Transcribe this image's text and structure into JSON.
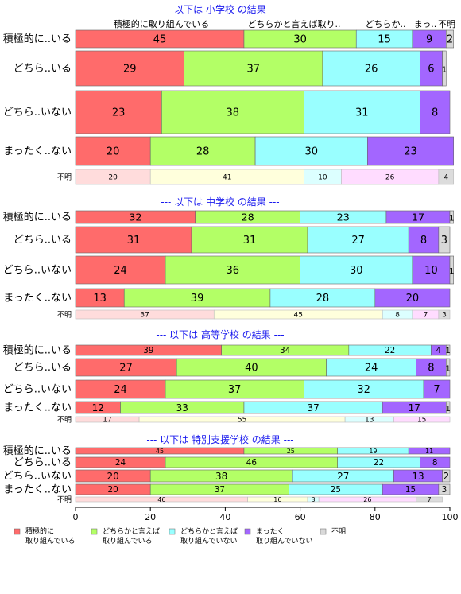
{
  "colors": {
    "title": "#1a1aee",
    "categories": [
      "#ff6b6b",
      "#b3ff66",
      "#99ffff",
      "#a366ff",
      "#d9d9d9"
    ],
    "unknown": [
      "#ffdcdc",
      "#ffffdc",
      "#dcffff",
      "#ffdcff",
      "#dcdcdc"
    ]
  },
  "chart_data": {
    "type": "bar",
    "orientation": "horizontal-stacked-100",
    "top_labels": [
      "積極的に取り組んでいる",
      "どちらかと言えば取り..",
      "どちらか..",
      "まっ..",
      "不明"
    ],
    "legend": [
      {
        "line1": "積極的に",
        "line2": "取り組んでいる"
      },
      {
        "line1": "どちらかと言えば",
        "line2": "取り組んでいる"
      },
      {
        "line1": "どちらかと言えば",
        "line2": "取り組んでいない"
      },
      {
        "line1": "まったく",
        "line2": "取り組んでいない"
      },
      {
        "line1": "不明",
        "line2": ""
      }
    ],
    "xlim": [
      0,
      100
    ],
    "x_ticks": [
      "0",
      "20",
      "40",
      "60",
      "80",
      "100"
    ],
    "panels": [
      {
        "title": "--- 以下は 小学校 の結果 ---",
        "rows": [
          {
            "label": "積極的に..いる",
            "values": [
              45,
              30,
              15,
              9,
              2
            ]
          },
          {
            "label": "どちら..いる",
            "values": [
              29,
              37,
              26,
              6,
              1
            ]
          },
          {
            "label": "どちら..いない",
            "values": [
              23,
              38,
              31,
              8,
              0
            ]
          },
          {
            "label": "まったく..ない",
            "values": [
              20,
              28,
              30,
              23,
              0
            ]
          },
          {
            "label": "不明",
            "values": [
              20,
              41,
              10,
              26,
              4
            ]
          }
        ]
      },
      {
        "title": "--- 以下は 中学校 の結果 ---",
        "rows": [
          {
            "label": "積極的に..いる",
            "values": [
              32,
              28,
              23,
              17,
              1
            ]
          },
          {
            "label": "どちら..いる",
            "values": [
              31,
              31,
              27,
              8,
              3
            ]
          },
          {
            "label": "どちら..いない",
            "values": [
              24,
              36,
              30,
              10,
              1
            ]
          },
          {
            "label": "まったく..ない",
            "values": [
              13,
              39,
              28,
              20,
              0
            ]
          },
          {
            "label": "不明",
            "values": [
              37,
              45,
              8,
              7,
              3
            ]
          }
        ]
      },
      {
        "title": "--- 以下は 高等学校 の結果 ---",
        "rows": [
          {
            "label": "積極的に..いる",
            "values": [
              39,
              34,
              22,
              4,
              1
            ]
          },
          {
            "label": "どちら..いる",
            "values": [
              27,
              40,
              24,
              8,
              1
            ]
          },
          {
            "label": "どちら..いない",
            "values": [
              24,
              37,
              32,
              7,
              0
            ]
          },
          {
            "label": "まったく..ない",
            "values": [
              12,
              33,
              37,
              17,
              1
            ]
          },
          {
            "label": "不明",
            "values": [
              17,
              55,
              13,
              15,
              0
            ]
          }
        ]
      },
      {
        "title": "--- 以下は 特別支援学校 の結果 ---",
        "rows": [
          {
            "label": "積極的に..いる",
            "values": [
              45,
              25,
              19,
              11,
              0
            ]
          },
          {
            "label": "どちら..いる",
            "values": [
              24,
              46,
              22,
              8,
              0
            ]
          },
          {
            "label": "どちら..いない",
            "values": [
              20,
              38,
              27,
              13,
              2
            ]
          },
          {
            "label": "まったく..ない",
            "values": [
              20,
              37,
              25,
              15,
              3
            ]
          },
          {
            "label": "不明",
            "values": [
              46,
              16,
              3,
              26,
              7
            ]
          }
        ]
      }
    ]
  }
}
